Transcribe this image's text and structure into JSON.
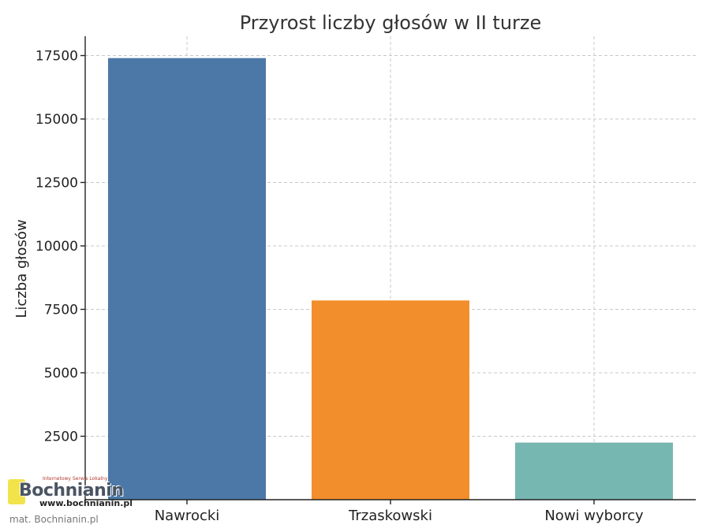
{
  "chart_data": {
    "type": "bar",
    "title": "Przyrost liczby głosów w II turze",
    "xlabel": "",
    "ylabel": "Liczba głosów",
    "categories": [
      "Nawrocki",
      "Trzaskowski",
      "Nowi wyborcy"
    ],
    "values": [
      17400,
      7850,
      2250
    ],
    "colors": [
      "#4c78a8",
      "#f28e2b",
      "#76b7b2"
    ],
    "ylim": [
      0,
      18000
    ],
    "yticks": [
      2500,
      5000,
      7500,
      10000,
      12500,
      15000,
      17500
    ],
    "grid": true,
    "legend": "none"
  },
  "watermark": {
    "logo_text": "Bochnianin",
    "logo_tagline": "Internetowy Serwis Lokalny",
    "logo_url": "www.bochnianin.pl",
    "credit": "mat. Bochnianin.pl"
  }
}
